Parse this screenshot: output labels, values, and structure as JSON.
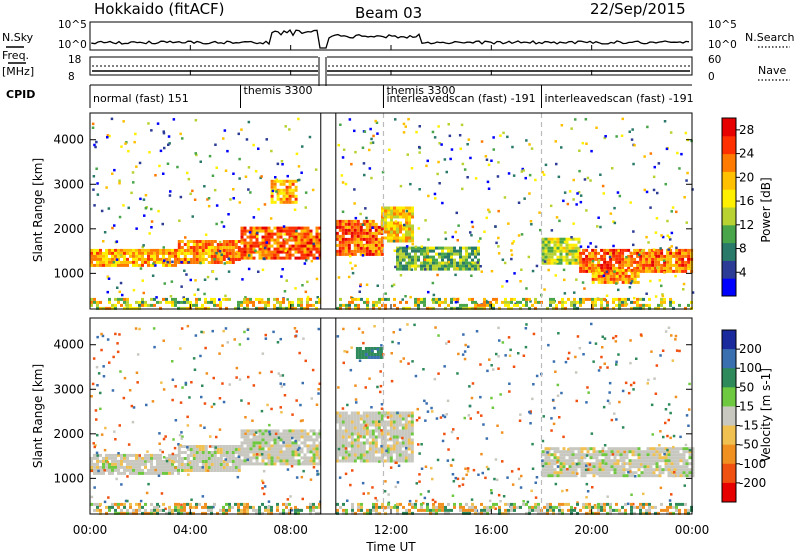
{
  "header": {
    "station": "Hokkaido (fitACF)",
    "beam": "Beam 03",
    "date": "22/Sep/2015"
  },
  "top_panels": {
    "nsky_label": "N.Sky",
    "nsky_ticks": [
      "10^5",
      "10^0"
    ],
    "nsearch_label": "N.Search",
    "nsearch_ticks": [
      "10^5",
      "10^0"
    ],
    "freq_label": "Freq.",
    "freq_unit": "[MHz]",
    "freq_ticks": [
      "18",
      "8"
    ],
    "nave_label": "Nave",
    "nave_ticks": [
      "60",
      "0"
    ],
    "cpid_label": "CPID"
  },
  "cpid_segments": [
    {
      "label": "normal (fast) 151",
      "start_h": 0.0
    },
    {
      "label": "themis 3300",
      "start_h": 6.0
    },
    {
      "label": "themis 3300",
      "start_h": 11.7
    },
    {
      "label": "interleavedscan (fast) -191",
      "start_h": 11.7
    },
    {
      "label": "interleavedscan (fast) -191",
      "start_h": 18.0
    }
  ],
  "chart_data": [
    {
      "type": "heatmap",
      "quantity": "Power",
      "ylabel": "Slant Range [km]",
      "xlabel": "Time UT",
      "xlim": [
        0,
        24
      ],
      "ylim": [
        200,
        4600
      ],
      "x_ticks": [
        "00:00",
        "04:00",
        "08:00",
        "12:00",
        "16:00",
        "20:00",
        "00:00"
      ],
      "y_ticks": [
        1000,
        2000,
        3000,
        4000
      ],
      "colorbar": {
        "label": "Power [dB]",
        "ticks": [
          4,
          8,
          12,
          16,
          20,
          24,
          28
        ],
        "range": [
          0,
          30
        ],
        "colors": [
          "#0000ff",
          "#2c3c96",
          "#2a7a6a",
          "#48a54a",
          "#b8d232",
          "#fff000",
          "#ffc000",
          "#ff7a00",
          "#ff3000",
          "#e60000"
        ]
      },
      "bands": [
        {
          "t0": 0.0,
          "t1": 3.5,
          "r0": 1150,
          "r1": 1550,
          "level": 20
        },
        {
          "t0": 3.5,
          "t1": 6.0,
          "r0": 1250,
          "r1": 1750,
          "level": 22
        },
        {
          "t0": 6.0,
          "t1": 9.2,
          "r0": 1350,
          "r1": 2050,
          "level": 24
        },
        {
          "t0": 7.2,
          "t1": 8.2,
          "r0": 2600,
          "r1": 3100,
          "level": 20
        },
        {
          "t0": 9.8,
          "t1": 11.6,
          "r0": 1400,
          "r1": 2200,
          "level": 24
        },
        {
          "t0": 11.6,
          "t1": 12.8,
          "r0": 1700,
          "r1": 2500,
          "level": 18
        },
        {
          "t0": 12.2,
          "t1": 15.5,
          "r0": 1100,
          "r1": 1600,
          "level": 11
        },
        {
          "t0": 18.0,
          "t1": 19.5,
          "r0": 1200,
          "r1": 1800,
          "level": 14
        },
        {
          "t0": 19.5,
          "t1": 24.0,
          "r0": 1050,
          "r1": 1550,
          "level": 23
        },
        {
          "t0": 20.0,
          "t1": 21.8,
          "r0": 800,
          "r1": 1100,
          "level": 21
        }
      ]
    },
    {
      "type": "heatmap",
      "quantity": "Velocity",
      "ylabel": "Slant Range [km]",
      "xlabel": "Time UT",
      "xlim": [
        0,
        24
      ],
      "ylim": [
        200,
        4600
      ],
      "x_ticks": [
        "00:00",
        "04:00",
        "08:00",
        "12:00",
        "16:00",
        "20:00",
        "00:00"
      ],
      "y_ticks": [
        1000,
        2000,
        3000,
        4000
      ],
      "colorbar": {
        "label": "Velocity [m s-1]",
        "ticks": [
          200,
          100,
          50,
          15,
          -15,
          -50,
          -100,
          -200
        ],
        "colors": [
          "#1a2a9c",
          "#3a6fb0",
          "#2e8a5a",
          "#6ec840",
          "#c8c8c0",
          "#f0c050",
          "#f09020",
          "#f05010",
          "#e60000"
        ]
      },
      "bands": [
        {
          "t0": 0.0,
          "t1": 3.5,
          "r0": 1100,
          "r1": 1550,
          "level": 0
        },
        {
          "t0": 3.5,
          "t1": 6.0,
          "r0": 1200,
          "r1": 1750,
          "level": 0
        },
        {
          "t0": 6.0,
          "t1": 9.2,
          "r0": 1300,
          "r1": 2100,
          "level": 0
        },
        {
          "t0": 9.8,
          "t1": 12.8,
          "r0": 1400,
          "r1": 2500,
          "level": 0
        },
        {
          "t0": 10.6,
          "t1": 11.6,
          "r0": 3700,
          "r1": 3950,
          "level": 60
        },
        {
          "t0": 18.0,
          "t1": 24.0,
          "r0": 1050,
          "r1": 1700,
          "level": 0
        }
      ]
    }
  ],
  "colors": {
    "outline": "#000000",
    "dashed_boundary": "#bbbbbb"
  }
}
